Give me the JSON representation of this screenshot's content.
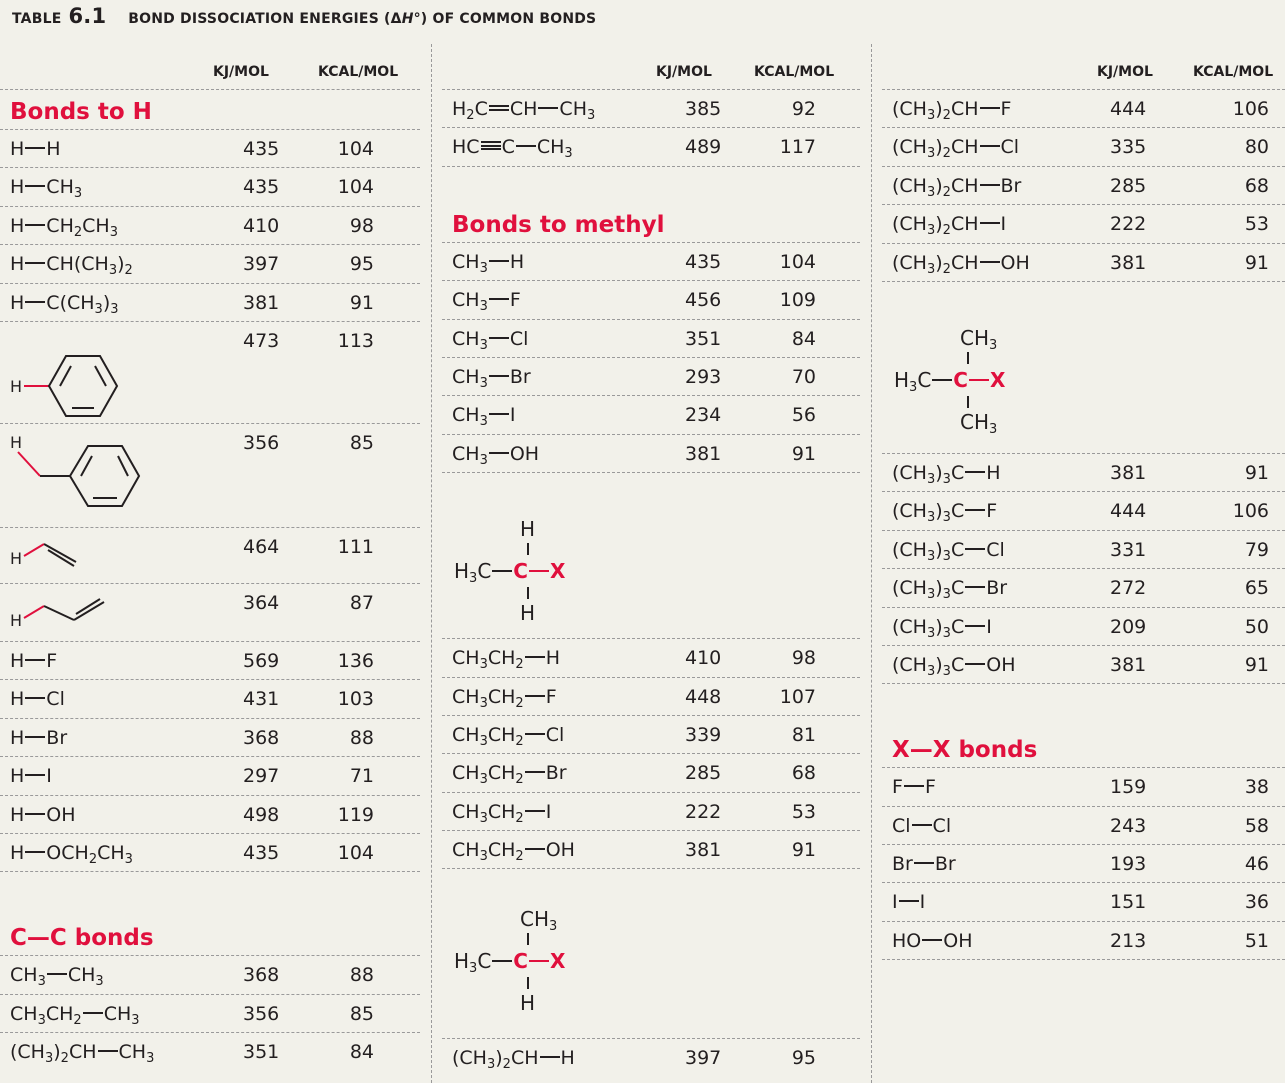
{
  "title": {
    "prefix": "TABLE",
    "number": "6.1",
    "text_before": "BOND DISSOCIATION ENERGIES (Δ",
    "italic": "H",
    "text_after": "°) OF COMMON BONDS"
  },
  "headers": {
    "kj": "KJ/MOL",
    "kcal": "KCAL/MOL"
  },
  "col1": {
    "bonds_to_h_title": "Bonds to H",
    "bonds_to_h": [
      {
        "kj": "435",
        "kcal": "104"
      },
      {
        "kj": "435",
        "kcal": "104"
      },
      {
        "kj": "410",
        "kcal": "98"
      },
      {
        "kj": "397",
        "kcal": "95"
      },
      {
        "kj": "381",
        "kcal": "91"
      },
      {
        "kj": "473",
        "kcal": "113"
      },
      {
        "kj": "356",
        "kcal": "85"
      },
      {
        "kj": "464",
        "kcal": "111"
      },
      {
        "kj": "364",
        "kcal": "87"
      },
      {
        "kj": "569",
        "kcal": "136"
      },
      {
        "kj": "431",
        "kcal": "103"
      },
      {
        "kj": "368",
        "kcal": "88"
      },
      {
        "kj": "297",
        "kcal": "71"
      },
      {
        "kj": "498",
        "kcal": "119"
      },
      {
        "kj": "435",
        "kcal": "104"
      }
    ],
    "cc_title": "C—C bonds",
    "cc": [
      {
        "kj": "368",
        "kcal": "88"
      },
      {
        "kj": "356",
        "kcal": "85"
      },
      {
        "kj": "351",
        "kcal": "84"
      }
    ]
  },
  "col2": {
    "top": [
      {
        "kj": "385",
        "kcal": "92"
      },
      {
        "kj": "489",
        "kcal": "117"
      }
    ],
    "methyl_title": "Bonds to methyl",
    "methyl": [
      {
        "kj": "435",
        "kcal": "104"
      },
      {
        "kj": "456",
        "kcal": "109"
      },
      {
        "kj": "351",
        "kcal": "84"
      },
      {
        "kj": "293",
        "kcal": "70"
      },
      {
        "kj": "234",
        "kcal": "56"
      },
      {
        "kj": "381",
        "kcal": "91"
      }
    ],
    "ethyl": [
      {
        "kj": "410",
        "kcal": "98"
      },
      {
        "kj": "448",
        "kcal": "107"
      },
      {
        "kj": "339",
        "kcal": "81"
      },
      {
        "kj": "285",
        "kcal": "68"
      },
      {
        "kj": "222",
        "kcal": "53"
      },
      {
        "kj": "381",
        "kcal": "91"
      }
    ],
    "isopropyl": [
      {
        "kj": "397",
        "kcal": "95"
      }
    ]
  },
  "col3": {
    "isopropyl": [
      {
        "kj": "444",
        "kcal": "106"
      },
      {
        "kj": "335",
        "kcal": "80"
      },
      {
        "kj": "285",
        "kcal": "68"
      },
      {
        "kj": "222",
        "kcal": "53"
      },
      {
        "kj": "381",
        "kcal": "91"
      }
    ],
    "tbutyl": [
      {
        "kj": "381",
        "kcal": "91"
      },
      {
        "kj": "444",
        "kcal": "106"
      },
      {
        "kj": "331",
        "kcal": "79"
      },
      {
        "kj": "272",
        "kcal": "65"
      },
      {
        "kj": "209",
        "kcal": "50"
      },
      {
        "kj": "381",
        "kcal": "91"
      }
    ],
    "xx_title": "X—X bonds",
    "xx": [
      {
        "kj": "159",
        "kcal": "38"
      },
      {
        "kj": "243",
        "kcal": "58"
      },
      {
        "kj": "193",
        "kcal": "46"
      },
      {
        "kj": "151",
        "kcal": "36"
      },
      {
        "kj": "213",
        "kcal": "51"
      }
    ]
  }
}
